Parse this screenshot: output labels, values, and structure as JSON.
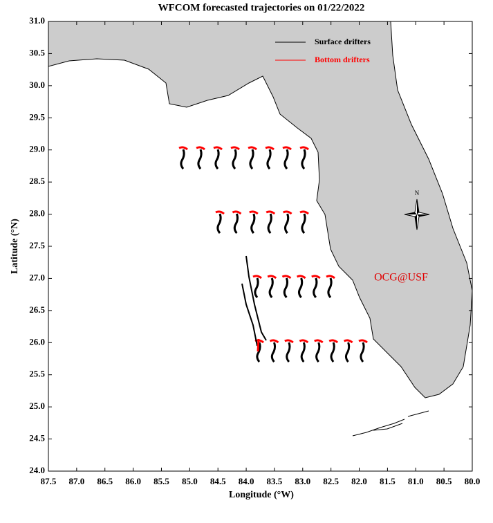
{
  "chart_data": {
    "type": "map",
    "title": "WFCOM forecasted trajectories on 01/22/2022",
    "xlabel": "Longitude (°W)",
    "ylabel": "Latitude (°N)",
    "xlim": [
      87.5,
      80
    ],
    "ylim": [
      24,
      31
    ],
    "xticks": [
      87.5,
      {
        "value": 87,
        "label": "87.0"
      },
      86.5,
      {
        "value": 86,
        "label": "86.0"
      },
      85.5,
      {
        "value": 85,
        "label": "85.0"
      },
      84.5,
      {
        "value": 84,
        "label": "84.0"
      },
      83.5,
      {
        "value": 83,
        "label": "83.0"
      },
      82.5,
      {
        "value": 82,
        "label": "82.0"
      },
      81.5,
      {
        "value": 81,
        "label": "81.0"
      },
      80.5,
      {
        "value": 80,
        "label": "80.0"
      }
    ],
    "yticks": [
      {
        "value": 24,
        "label": "24.0"
      },
      24.5,
      {
        "value": 25,
        "label": "25.0"
      },
      25.5,
      {
        "value": 26,
        "label": "26.0"
      },
      26.5,
      {
        "value": 27,
        "label": "27.0"
      },
      27.5,
      {
        "value": 28,
        "label": "28.0"
      },
      28.5,
      {
        "value": 29,
        "label": "29.0"
      },
      29.5,
      {
        "value": 30,
        "label": "30.0"
      },
      30.5,
      {
        "value": 31,
        "label": "31.0"
      }
    ],
    "legend": [
      {
        "name": "Surface drifters",
        "color": "#000000"
      },
      {
        "name": "Bottom drifters",
        "color": "#ff0000"
      }
    ],
    "annotation": "OCG@USF"
  },
  "compass": "N"
}
